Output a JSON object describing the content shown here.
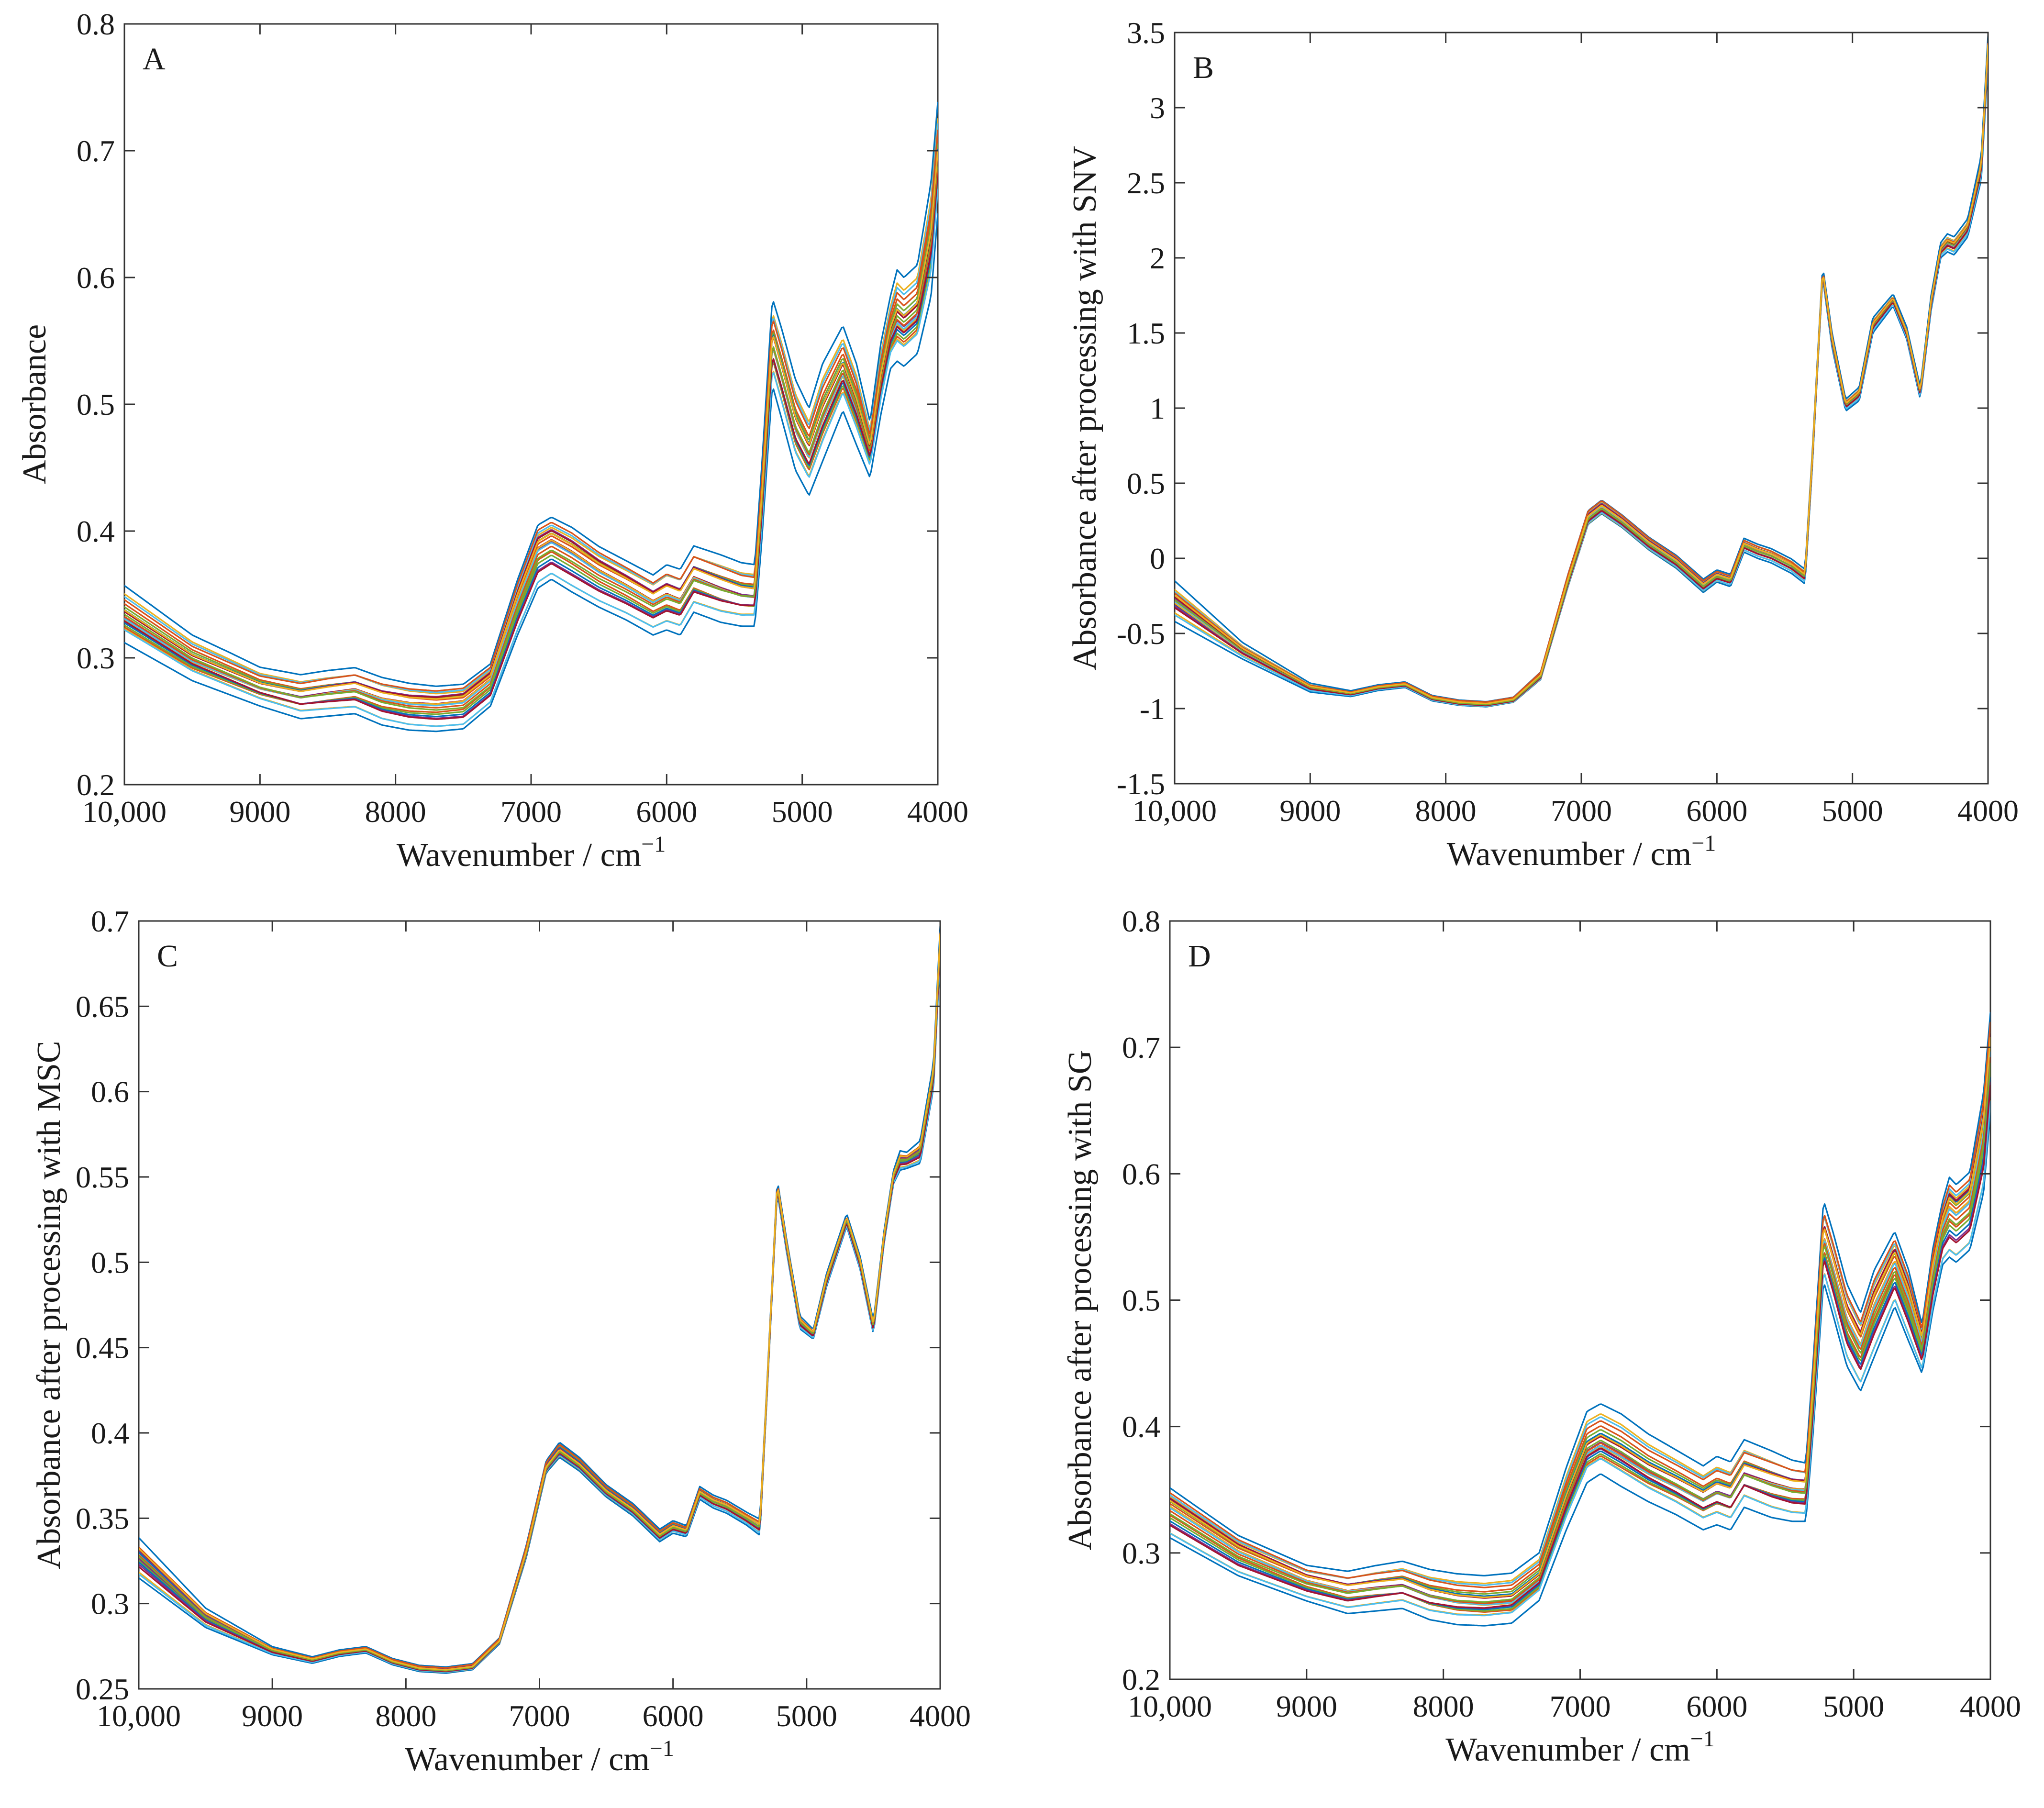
{
  "figure_colors": [
    "#0072BD",
    "#D95319",
    "#EDB120",
    "#7E2F8E",
    "#77AC30",
    "#4DBEEE",
    "#A2142F"
  ],
  "chart_data": [
    {
      "type": "line",
      "panel_label": "A",
      "title": "",
      "xlabel": "Wavenumber / cm",
      "xlabel_exponent": "−1",
      "ylabel": "Absorbance",
      "xlim": [
        10000,
        4000
      ],
      "ylim": [
        0.2,
        0.8
      ],
      "xticks": [
        {
          "value": 10000,
          "label": "10,000"
        },
        {
          "value": 9000,
          "label": "9000"
        },
        {
          "value": 8000,
          "label": "8000"
        },
        {
          "value": 7000,
          "label": "7000"
        },
        {
          "value": 6000,
          "label": "6000"
        },
        {
          "value": 5000,
          "label": "5000"
        },
        {
          "value": 4000,
          "label": "4000"
        }
      ],
      "yticks": [
        {
          "value": 0.2,
          "label": "0.2"
        },
        {
          "value": 0.3,
          "label": "0.3"
        },
        {
          "value": 0.4,
          "label": "0.4"
        },
        {
          "value": 0.5,
          "label": "0.5"
        },
        {
          "value": 0.6,
          "label": "0.6"
        },
        {
          "value": 0.7,
          "label": "0.7"
        },
        {
          "value": 0.8,
          "label": "0.8"
        }
      ],
      "spectrum_count": 24,
      "x": [
        10000,
        9500,
        9000,
        8700,
        8500,
        8300,
        8100,
        7900,
        7700,
        7500,
        7300,
        7100,
        6950,
        6850,
        6700,
        6500,
        6300,
        6100,
        6000,
        5900,
        5800,
        5700,
        5600,
        5450,
        5350,
        5300,
        5220,
        5150,
        5050,
        4950,
        4850,
        4700,
        4600,
        4500,
        4420,
        4350,
        4300,
        4250,
        4150,
        4050,
        4000
      ],
      "mean_spectrum": [
        0.33,
        0.298,
        0.277,
        0.269,
        0.272,
        0.275,
        0.268,
        0.264,
        0.262,
        0.264,
        0.28,
        0.34,
        0.385,
        0.395,
        0.385,
        0.372,
        0.36,
        0.345,
        0.352,
        0.348,
        0.368,
        0.362,
        0.358,
        0.352,
        0.35,
        0.42,
        0.56,
        0.53,
        0.49,
        0.47,
        0.5,
        0.54,
        0.51,
        0.465,
        0.52,
        0.555,
        0.565,
        0.56,
        0.575,
        0.63,
        0.7
      ],
      "spread_min": [
        0.312,
        0.282,
        0.262,
        0.252,
        0.254,
        0.256,
        0.247,
        0.243,
        0.242,
        0.244,
        0.262,
        0.318,
        0.355,
        0.362,
        0.352,
        0.34,
        0.33,
        0.318,
        0.322,
        0.318,
        0.336,
        0.332,
        0.328,
        0.325,
        0.325,
        0.39,
        0.515,
        0.488,
        0.448,
        0.428,
        0.455,
        0.495,
        0.468,
        0.442,
        0.492,
        0.528,
        0.534,
        0.53,
        0.54,
        0.585,
        0.65
      ],
      "spread_max": [
        0.357,
        0.318,
        0.293,
        0.288,
        0.292,
        0.295,
        0.288,
        0.284,
        0.282,
        0.284,
        0.3,
        0.368,
        0.412,
        0.418,
        0.41,
        0.394,
        0.382,
        0.37,
        0.378,
        0.374,
        0.392,
        0.388,
        0.384,
        0.377,
        0.375,
        0.45,
        0.585,
        0.56,
        0.52,
        0.497,
        0.532,
        0.562,
        0.532,
        0.486,
        0.548,
        0.585,
        0.606,
        0.6,
        0.61,
        0.675,
        0.738
      ]
    },
    {
      "type": "line",
      "panel_label": "B",
      "title": "",
      "xlabel": "Wavenumber / cm",
      "xlabel_exponent": "−1",
      "ylabel": "Absorbance after processing with SNV",
      "xlim": [
        10000,
        4000
      ],
      "ylim": [
        -1.5,
        3.5
      ],
      "xticks": [
        {
          "value": 10000,
          "label": "10,000"
        },
        {
          "value": 9000,
          "label": "9000"
        },
        {
          "value": 8000,
          "label": "8000"
        },
        {
          "value": 7000,
          "label": "7000"
        },
        {
          "value": 6000,
          "label": "6000"
        },
        {
          "value": 5000,
          "label": "5000"
        },
        {
          "value": 4000,
          "label": "4000"
        }
      ],
      "yticks": [
        {
          "value": -1.5,
          "label": "-1.5"
        },
        {
          "value": -1,
          "label": "-1"
        },
        {
          "value": -0.5,
          "label": "-0.5"
        },
        {
          "value": 0,
          "label": "0"
        },
        {
          "value": 0.5,
          "label": "0.5"
        },
        {
          "value": 1,
          "label": "1"
        },
        {
          "value": 1.5,
          "label": "1.5"
        },
        {
          "value": 2,
          "label": "2"
        },
        {
          "value": 2.5,
          "label": "2.5"
        },
        {
          "value": 3,
          "label": "3"
        },
        {
          "value": 3.5,
          "label": "3.5"
        }
      ],
      "spectrum_count": 24,
      "x": [
        10000,
        9500,
        9000,
        8700,
        8500,
        8300,
        8100,
        7900,
        7700,
        7500,
        7300,
        7100,
        6950,
        6850,
        6700,
        6500,
        6300,
        6100,
        6000,
        5900,
        5800,
        5700,
        5600,
        5450,
        5350,
        5300,
        5220,
        5150,
        5050,
        4950,
        4850,
        4700,
        4600,
        4500,
        4420,
        4350,
        4300,
        4250,
        4150,
        4050,
        4000
      ],
      "mean_spectrum": [
        -0.28,
        -0.62,
        -0.86,
        -0.9,
        -0.86,
        -0.84,
        -0.93,
        -0.96,
        -0.97,
        -0.94,
        -0.78,
        -0.15,
        0.28,
        0.35,
        0.25,
        0.1,
        -0.02,
        -0.18,
        -0.12,
        -0.15,
        0.1,
        0.05,
        0.02,
        -0.05,
        -0.12,
        0.6,
        1.92,
        1.45,
        1.02,
        1.1,
        1.55,
        1.72,
        1.5,
        1.1,
        1.7,
        2.05,
        2.1,
        2.08,
        2.2,
        2.6,
        3.4
      ],
      "spread_min": [
        -0.42,
        -0.67,
        -0.89,
        -0.92,
        -0.88,
        -0.86,
        -0.95,
        -0.98,
        -0.99,
        -0.96,
        -0.81,
        -0.2,
        0.22,
        0.29,
        0.2,
        0.05,
        -0.07,
        -0.23,
        -0.16,
        -0.19,
        0.04,
        0.0,
        -0.03,
        -0.1,
        -0.17,
        0.55,
        1.87,
        1.4,
        0.98,
        1.05,
        1.5,
        1.68,
        1.46,
        1.06,
        1.65,
        2.0,
        2.04,
        2.02,
        2.14,
        2.52,
        3.3
      ],
      "spread_max": [
        -0.15,
        -0.56,
        -0.83,
        -0.88,
        -0.84,
        -0.82,
        -0.91,
        -0.94,
        -0.95,
        -0.92,
        -0.75,
        -0.1,
        0.33,
        0.4,
        0.3,
        0.15,
        0.03,
        -0.13,
        -0.07,
        -0.1,
        0.14,
        0.1,
        0.07,
        0.0,
        -0.07,
        0.65,
        1.95,
        1.5,
        1.06,
        1.14,
        1.6,
        1.76,
        1.54,
        1.14,
        1.75,
        2.1,
        2.16,
        2.14,
        2.26,
        2.68,
        3.48
      ]
    },
    {
      "type": "line",
      "panel_label": "C",
      "title": "",
      "xlabel": "Wavenumber / cm",
      "xlabel_exponent": "−1",
      "ylabel": "Absorbance after processing with MSC",
      "xlim": [
        10000,
        4000
      ],
      "ylim": [
        0.25,
        0.7
      ],
      "xticks": [
        {
          "value": 10000,
          "label": "10,000"
        },
        {
          "value": 9000,
          "label": "9000"
        },
        {
          "value": 8000,
          "label": "8000"
        },
        {
          "value": 7000,
          "label": "7000"
        },
        {
          "value": 6000,
          "label": "6000"
        },
        {
          "value": 5000,
          "label": "5000"
        },
        {
          "value": 4000,
          "label": "4000"
        }
      ],
      "yticks": [
        {
          "value": 0.25,
          "label": "0.25"
        },
        {
          "value": 0.3,
          "label": "0.3"
        },
        {
          "value": 0.35,
          "label": "0.35"
        },
        {
          "value": 0.4,
          "label": "0.4"
        },
        {
          "value": 0.45,
          "label": "0.45"
        },
        {
          "value": 0.5,
          "label": "0.5"
        },
        {
          "value": 0.55,
          "label": "0.55"
        },
        {
          "value": 0.6,
          "label": "0.6"
        },
        {
          "value": 0.65,
          "label": "0.65"
        },
        {
          "value": 0.7,
          "label": "0.7"
        }
      ],
      "spectrum_count": 24,
      "x": [
        10000,
        9500,
        9000,
        8700,
        8500,
        8300,
        8100,
        7900,
        7700,
        7500,
        7300,
        7100,
        6950,
        6850,
        6700,
        6500,
        6300,
        6100,
        6000,
        5900,
        5800,
        5700,
        5600,
        5450,
        5350,
        5300,
        5220,
        5150,
        5050,
        4950,
        4850,
        4700,
        4600,
        4500,
        4420,
        4350,
        4300,
        4250,
        4150,
        4050,
        4000
      ],
      "mean_spectrum": [
        0.328,
        0.292,
        0.272,
        0.267,
        0.271,
        0.273,
        0.266,
        0.262,
        0.261,
        0.263,
        0.278,
        0.33,
        0.38,
        0.39,
        0.382,
        0.366,
        0.355,
        0.34,
        0.345,
        0.342,
        0.365,
        0.36,
        0.357,
        0.35,
        0.345,
        0.42,
        0.545,
        0.51,
        0.465,
        0.458,
        0.49,
        0.525,
        0.5,
        0.462,
        0.515,
        0.55,
        0.56,
        0.56,
        0.565,
        0.61,
        0.69
      ],
      "spread_min": [
        0.315,
        0.286,
        0.27,
        0.265,
        0.269,
        0.271,
        0.264,
        0.26,
        0.259,
        0.261,
        0.276,
        0.326,
        0.376,
        0.385,
        0.377,
        0.362,
        0.351,
        0.336,
        0.341,
        0.339,
        0.361,
        0.356,
        0.353,
        0.346,
        0.34,
        0.416,
        0.541,
        0.506,
        0.461,
        0.455,
        0.486,
        0.521,
        0.496,
        0.458,
        0.511,
        0.546,
        0.554,
        0.555,
        0.558,
        0.602,
        0.68
      ],
      "spread_max": [
        0.34,
        0.298,
        0.275,
        0.269,
        0.273,
        0.275,
        0.268,
        0.264,
        0.263,
        0.265,
        0.28,
        0.334,
        0.384,
        0.395,
        0.386,
        0.37,
        0.359,
        0.344,
        0.349,
        0.346,
        0.369,
        0.364,
        0.361,
        0.354,
        0.35,
        0.424,
        0.549,
        0.514,
        0.469,
        0.461,
        0.494,
        0.529,
        0.504,
        0.466,
        0.519,
        0.554,
        0.566,
        0.565,
        0.572,
        0.618,
        0.698
      ]
    },
    {
      "type": "line",
      "panel_label": "D",
      "title": "",
      "xlabel": "Wavenumber / cm",
      "xlabel_exponent": "−1",
      "ylabel": "Absorbance after processing with SG",
      "xlim": [
        10000,
        4000
      ],
      "ylim": [
        0.2,
        0.8
      ],
      "xticks": [
        {
          "value": 10000,
          "label": "10,000"
        },
        {
          "value": 9000,
          "label": "9000"
        },
        {
          "value": 8000,
          "label": "8000"
        },
        {
          "value": 7000,
          "label": "7000"
        },
        {
          "value": 6000,
          "label": "6000"
        },
        {
          "value": 5000,
          "label": "5000"
        },
        {
          "value": 4000,
          "label": "4000"
        }
      ],
      "yticks": [
        {
          "value": 0.2,
          "label": "0.2"
        },
        {
          "value": 0.3,
          "label": "0.3"
        },
        {
          "value": 0.4,
          "label": "0.4"
        },
        {
          "value": 0.5,
          "label": "0.5"
        },
        {
          "value": 0.6,
          "label": "0.6"
        },
        {
          "value": 0.7,
          "label": "0.7"
        },
        {
          "value": 0.8,
          "label": "0.8"
        }
      ],
      "spectrum_count": 24,
      "x": [
        10000,
        9500,
        9000,
        8700,
        8500,
        8300,
        8100,
        7900,
        7700,
        7500,
        7300,
        7100,
        6950,
        6850,
        6700,
        6500,
        6300,
        6100,
        6000,
        5900,
        5800,
        5700,
        5600,
        5450,
        5350,
        5300,
        5220,
        5150,
        5050,
        4950,
        4850,
        4700,
        4600,
        4500,
        4420,
        4350,
        4300,
        4250,
        4150,
        4050,
        4000
      ],
      "mean_spectrum": [
        0.33,
        0.298,
        0.277,
        0.269,
        0.272,
        0.275,
        0.268,
        0.264,
        0.262,
        0.264,
        0.28,
        0.34,
        0.385,
        0.395,
        0.385,
        0.372,
        0.36,
        0.345,
        0.352,
        0.348,
        0.368,
        0.362,
        0.358,
        0.352,
        0.35,
        0.42,
        0.56,
        0.53,
        0.49,
        0.47,
        0.5,
        0.54,
        0.51,
        0.465,
        0.52,
        0.555,
        0.565,
        0.56,
        0.575,
        0.63,
        0.7
      ],
      "spread_min": [
        0.312,
        0.282,
        0.262,
        0.252,
        0.254,
        0.256,
        0.247,
        0.243,
        0.242,
        0.244,
        0.262,
        0.318,
        0.355,
        0.362,
        0.352,
        0.34,
        0.33,
        0.318,
        0.322,
        0.318,
        0.336,
        0.332,
        0.328,
        0.325,
        0.325,
        0.39,
        0.515,
        0.488,
        0.448,
        0.428,
        0.455,
        0.495,
        0.468,
        0.442,
        0.492,
        0.528,
        0.534,
        0.53,
        0.54,
        0.585,
        0.65
      ],
      "spread_max": [
        0.357,
        0.318,
        0.293,
        0.288,
        0.292,
        0.295,
        0.288,
        0.284,
        0.282,
        0.284,
        0.3,
        0.368,
        0.412,
        0.418,
        0.41,
        0.394,
        0.382,
        0.37,
        0.378,
        0.374,
        0.392,
        0.388,
        0.384,
        0.377,
        0.375,
        0.45,
        0.585,
        0.56,
        0.52,
        0.497,
        0.532,
        0.562,
        0.532,
        0.486,
        0.548,
        0.585,
        0.606,
        0.6,
        0.61,
        0.675,
        0.738
      ]
    }
  ]
}
